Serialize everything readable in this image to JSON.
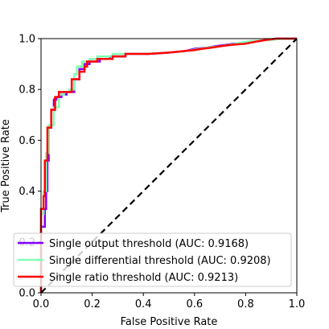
{
  "chart_data": {
    "type": "line",
    "title": "",
    "xlabel": "False Positive Rate",
    "ylabel": "True Positive Rate",
    "xlim": [
      0.0,
      1.0
    ],
    "ylim": [
      0.0,
      1.0
    ],
    "xticks": [
      "0.0",
      "0.2",
      "0.4",
      "0.6",
      "0.8",
      "1.0"
    ],
    "yticks": [
      "0.0",
      "0.2",
      "0.4",
      "0.6",
      "0.8",
      "1.0"
    ],
    "grid": false,
    "legend_position": "lower-right",
    "series": [
      {
        "name": "Single output threshold (AUC: 0.9168)",
        "color": "#7f00ff",
        "style": "solid",
        "x": [
          0.0,
          0.0,
          0.015,
          0.015,
          0.02,
          0.02,
          0.025,
          0.025,
          0.03,
          0.03,
          0.04,
          0.04,
          0.05,
          0.05,
          0.06,
          0.06,
          0.08,
          0.08,
          0.1,
          0.1,
          0.13,
          0.13,
          0.15,
          0.15,
          0.17,
          0.17,
          0.19,
          0.19,
          0.23,
          0.23,
          0.27,
          0.27,
          0.33,
          0.33,
          0.42,
          0.5,
          0.56,
          0.6,
          0.65,
          0.68,
          0.72,
          0.75,
          0.8,
          0.85,
          0.88,
          0.92,
          0.96,
          1.0
        ],
        "y": [
          0.0,
          0.26,
          0.26,
          0.33,
          0.33,
          0.4,
          0.4,
          0.52,
          0.52,
          0.65,
          0.65,
          0.72,
          0.72,
          0.76,
          0.76,
          0.77,
          0.77,
          0.78,
          0.78,
          0.79,
          0.79,
          0.84,
          0.84,
          0.88,
          0.88,
          0.9,
          0.9,
          0.91,
          0.91,
          0.92,
          0.92,
          0.93,
          0.93,
          0.94,
          0.94,
          0.945,
          0.95,
          0.96,
          0.965,
          0.97,
          0.975,
          0.98,
          0.985,
          0.99,
          0.995,
          1.0,
          1.0,
          1.0
        ]
      },
      {
        "name": "Single differential threshold (AUC: 0.9208)",
        "color": "#80ffb4",
        "style": "solid",
        "x": [
          0.0,
          0.0,
          0.01,
          0.01,
          0.02,
          0.02,
          0.03,
          0.03,
          0.05,
          0.05,
          0.07,
          0.07,
          0.09,
          0.09,
          0.11,
          0.11,
          0.13,
          0.13,
          0.14,
          0.14,
          0.16,
          0.16,
          0.19,
          0.19,
          0.22,
          0.22,
          0.28,
          0.28,
          0.4,
          0.5,
          0.56,
          0.62,
          0.65,
          0.7,
          0.76,
          0.82,
          0.9,
          0.95,
          1.0
        ],
        "y": [
          0.0,
          0.31,
          0.31,
          0.4,
          0.4,
          0.55,
          0.55,
          0.66,
          0.66,
          0.73,
          0.73,
          0.78,
          0.78,
          0.79,
          0.79,
          0.8,
          0.8,
          0.86,
          0.86,
          0.89,
          0.89,
          0.91,
          0.91,
          0.92,
          0.92,
          0.93,
          0.93,
          0.94,
          0.94,
          0.945,
          0.95,
          0.96,
          0.965,
          0.97,
          0.98,
          0.99,
          0.995,
          1.0,
          1.0
        ]
      },
      {
        "name": "Single ratio threshold (AUC: 0.9213)",
        "color": "#ff0000",
        "style": "solid",
        "x": [
          0.0,
          0.0,
          0.01,
          0.01,
          0.015,
          0.015,
          0.025,
          0.025,
          0.04,
          0.04,
          0.055,
          0.055,
          0.07,
          0.07,
          0.12,
          0.12,
          0.15,
          0.15,
          0.17,
          0.17,
          0.18,
          0.18,
          0.22,
          0.22,
          0.28,
          0.28,
          0.33,
          0.33,
          0.42,
          0.5,
          0.55,
          0.6,
          0.63,
          0.67,
          0.7,
          0.74,
          0.8,
          0.85,
          0.88,
          0.92,
          0.96,
          1.0
        ],
        "y": [
          0.0,
          0.33,
          0.33,
          0.38,
          0.38,
          0.52,
          0.52,
          0.65,
          0.65,
          0.72,
          0.72,
          0.77,
          0.77,
          0.79,
          0.79,
          0.84,
          0.84,
          0.87,
          0.87,
          0.89,
          0.89,
          0.91,
          0.91,
          0.92,
          0.92,
          0.93,
          0.93,
          0.94,
          0.94,
          0.945,
          0.95,
          0.955,
          0.96,
          0.965,
          0.97,
          0.975,
          0.98,
          0.99,
          0.995,
          1.0,
          1.0,
          1.0
        ]
      },
      {
        "name": "",
        "color": "#000000",
        "style": "dashed",
        "x": [
          0.0,
          1.0
        ],
        "y": [
          0.0,
          1.0
        ]
      }
    ],
    "legend": [
      {
        "label": "Single output threshold (AUC: 0.9168)",
        "color": "#7f00ff"
      },
      {
        "label": "Single differential threshold (AUC: 0.9208)",
        "color": "#80ffb4"
      },
      {
        "label": "Single ratio threshold (AUC: 0.9213)",
        "color": "#ff0000"
      }
    ]
  }
}
